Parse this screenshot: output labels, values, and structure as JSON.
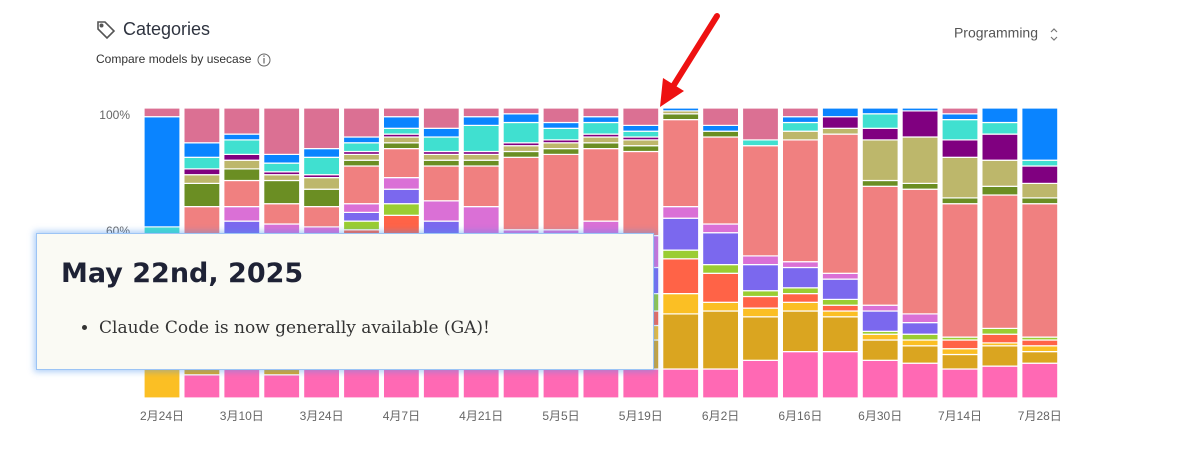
{
  "chart_data": {
    "type": "stacked_bar_percent",
    "title": "Categories",
    "subtitle": "Compare models by usecase",
    "selector": "Programming",
    "annotation": {
      "title": "May 22nd, 2025",
      "items": [
        "Claude Code is now generally available (GA)!"
      ]
    },
    "categories": [
      "2月24日",
      null,
      "3月10日",
      null,
      "3月24日",
      null,
      "4月7日",
      null,
      "4月21日",
      null,
      "5月5日",
      null,
      "5月19日",
      null,
      "6月2日",
      null,
      "6月16日",
      null,
      "6月30日",
      null,
      "7月14日",
      null,
      "7月28日"
    ],
    "ylim": [
      0,
      100
    ],
    "yticks": [
      {
        "value": 60,
        "label": "60%"
      },
      {
        "value": 100,
        "label": "100%"
      }
    ],
    "series": [
      {
        "color": "#ff69b4",
        "values": [
          0,
          8,
          13,
          8,
          10,
          10,
          10,
          10,
          10,
          10,
          10,
          10,
          10,
          10,
          10,
          13,
          16,
          16,
          13,
          12,
          10,
          11,
          12
        ]
      },
      {
        "color": "#daa520",
        "values": [
          0,
          5,
          12,
          6,
          6,
          8,
          10,
          10,
          10,
          10,
          10,
          10,
          10,
          19,
          20,
          15,
          14,
          12,
          7,
          6,
          5,
          7,
          4
        ]
      },
      {
        "color": "#fbbf24",
        "values": [
          25,
          5,
          6,
          5,
          5,
          23,
          18,
          10,
          10,
          6,
          8,
          5,
          5,
          7,
          3,
          3,
          3,
          2,
          2,
          2,
          2,
          1,
          2
        ]
      },
      {
        "color": "#ff6347",
        "values": [
          2,
          5,
          5,
          6,
          6,
          17,
          25,
          15,
          12,
          13,
          13,
          9,
          5,
          12,
          10,
          4,
          3,
          2,
          0,
          0,
          3,
          3,
          2
        ]
      },
      {
        "color": "#9acd32",
        "values": [
          2,
          5,
          5,
          5,
          5,
          3,
          4,
          10,
          7,
          7,
          5,
          8,
          6,
          3,
          3,
          2,
          2,
          2,
          1,
          2,
          1,
          2,
          1
        ]
      },
      {
        "color": "#7b68ee",
        "values": [
          5,
          20,
          20,
          25,
          22,
          3,
          5,
          6,
          6,
          6,
          6,
          6,
          9,
          11,
          11,
          9,
          7,
          7,
          7,
          4,
          0,
          0,
          0
        ]
      },
      {
        "color": "#da70d6",
        "values": [
          2,
          5,
          5,
          5,
          5,
          3,
          4,
          7,
          11,
          6,
          6,
          13,
          11,
          4,
          3,
          3,
          2,
          2,
          2,
          3,
          0,
          0,
          0
        ]
      },
      {
        "color": "#f08080",
        "values": [
          3,
          13,
          9,
          7,
          7,
          13,
          10,
          12,
          14,
          25,
          26,
          25,
          29,
          30,
          30,
          38,
          42,
          48,
          41,
          43,
          46,
          46,
          46
        ]
      },
      {
        "color": "#6b8e23",
        "values": [
          2,
          8,
          4,
          8,
          6,
          2,
          2,
          2,
          2,
          2,
          2,
          2,
          2,
          2,
          2,
          0,
          0,
          0,
          2,
          2,
          2,
          3,
          2
        ]
      },
      {
        "color": "#bdb76b",
        "values": [
          2,
          3,
          3,
          2,
          4,
          2,
          2,
          2,
          2,
          2,
          2,
          2,
          2,
          1,
          0,
          0,
          3,
          2,
          14,
          16,
          14,
          9,
          5
        ]
      },
      {
        "color": "#800080",
        "values": [
          0,
          2,
          2,
          1,
          1,
          1,
          1,
          1,
          1,
          1,
          1,
          1,
          1,
          0,
          0,
          0,
          0,
          4,
          4,
          9,
          6,
          9,
          6
        ]
      },
      {
        "color": "#40e0d0",
        "values": [
          16,
          4,
          5,
          3,
          6,
          3,
          2,
          5,
          9,
          7,
          4,
          4,
          2,
          0,
          0,
          2,
          3,
          0,
          5,
          0,
          7,
          4,
          2
        ]
      },
      {
        "color": "#0a84ff",
        "values": [
          38,
          5,
          2,
          3,
          3,
          2,
          4,
          3,
          3,
          3,
          2,
          2,
          2,
          1,
          2,
          0,
          2,
          3,
          2,
          1,
          2,
          5,
          18
        ]
      },
      {
        "color": "#db7093",
        "values": [
          3,
          12,
          9,
          16,
          14,
          10,
          3,
          7,
          3,
          2,
          5,
          3,
          6,
          0,
          6,
          11,
          3,
          0,
          0,
          0,
          2,
          0,
          0
        ]
      }
    ]
  }
}
